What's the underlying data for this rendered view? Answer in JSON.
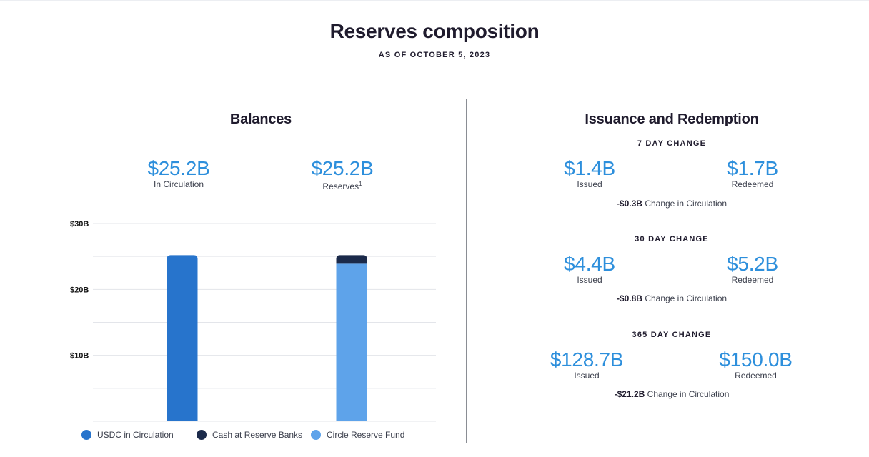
{
  "header": {
    "title": "Reserves composition",
    "subtitle": "AS OF OCTOBER 5, 2023"
  },
  "balances": {
    "title": "Balances",
    "in_circulation": {
      "value": "$25.2B",
      "label": "In Circulation"
    },
    "reserves": {
      "value": "$25.2B",
      "label": "Reserves",
      "footnote": "1"
    }
  },
  "issuance": {
    "title": "Issuance and Redemption",
    "periods": [
      {
        "heading": "7 DAY CHANGE",
        "issued": "$1.4B",
        "issued_label": "Issued",
        "redeemed": "$1.7B",
        "redeemed_label": "Redeemed",
        "change": "-$0.3B",
        "change_label": "Change in Circulation"
      },
      {
        "heading": "30 DAY CHANGE",
        "issued": "$4.4B",
        "issued_label": "Issued",
        "redeemed": "$5.2B",
        "redeemed_label": "Redeemed",
        "change": "-$0.8B",
        "change_label": "Change in Circulation"
      },
      {
        "heading": "365 DAY CHANGE",
        "issued": "$128.7B",
        "issued_label": "Issued",
        "redeemed": "$150.0B",
        "redeemed_label": "Redeemed",
        "change": "-$21.2B",
        "change_label": "Change in Circulation"
      }
    ]
  },
  "colors": {
    "accent": "#2d8fdc",
    "usdc": "#2774cc",
    "cash": "#1b2a4a",
    "fund": "#5ea3ea",
    "grid": "#e3e5ea"
  },
  "chart_data": {
    "type": "bar",
    "stacked": true,
    "title": "Balances",
    "categories": [
      "USDC in Circulation",
      "Reserves"
    ],
    "series": [
      {
        "name": "USDC in Circulation",
        "color": "#2774cc",
        "values": [
          25.2,
          0
        ]
      },
      {
        "name": "Circle Reserve Fund",
        "color": "#5ea3ea",
        "values": [
          0,
          23.9
        ]
      },
      {
        "name": "Cash at Reserve Banks",
        "color": "#1b2a4a",
        "values": [
          0,
          1.3
        ]
      }
    ],
    "yticks": [
      10,
      20,
      30
    ],
    "ytick_labels": [
      "$10B",
      "$20B",
      "$30B"
    ],
    "ylim": [
      0,
      30
    ],
    "gridlines": [
      5,
      10,
      15,
      20,
      25,
      30
    ],
    "legend": [
      "USDC in Circulation",
      "Cash at Reserve Banks",
      "Circle Reserve Fund"
    ],
    "legend_position": "bottom",
    "xlabel": "",
    "ylabel": ""
  },
  "legend_items": [
    {
      "label": "USDC in Circulation",
      "color": "#2774cc"
    },
    {
      "label": "Cash at Reserve Banks",
      "color": "#1b2a4a"
    },
    {
      "label": "Circle Reserve Fund",
      "color": "#5ea3ea"
    }
  ]
}
